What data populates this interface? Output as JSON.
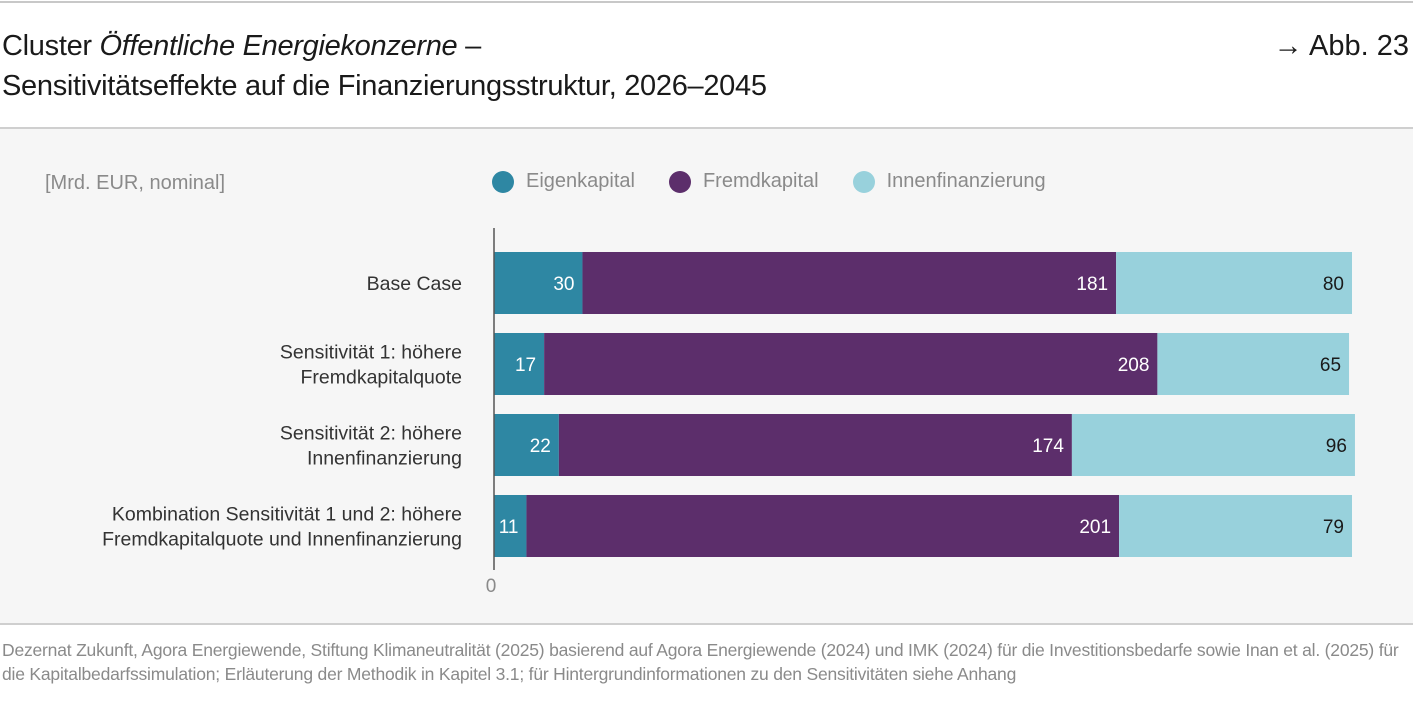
{
  "header": {
    "title_prefix": "Cluster ",
    "title_italic": "Öffentliche Energiekonzerne",
    "title_suffix": " –",
    "title_line2": "Sensitivitätseffekte auf die Finanzierungsstruktur, 2026–2045",
    "figure_ref": "→ Abb. 23"
  },
  "chart_data": {
    "type": "bar",
    "orientation": "horizontal",
    "stacked": true,
    "unit_label": "[Mrd. EUR, nominal]",
    "categories": [
      [
        "Base Case"
      ],
      [
        "Sensitivität 1: höhere",
        "Fremdkapitalquote"
      ],
      [
        "Sensitivität 2: höhere",
        "Innenfinanzierung"
      ],
      [
        "Kombination Sensitivität 1 und 2: höhere",
        "Fremdkapitalquote und Innenfinanzierung"
      ]
    ],
    "series": [
      {
        "name": "Eigenkapital",
        "color": "#2e87a3",
        "label_color": "#ffffff",
        "values": [
          30,
          17,
          22,
          11
        ]
      },
      {
        "name": "Fremdkapital",
        "color": "#5c2e6b",
        "label_color": "#ffffff",
        "values": [
          181,
          208,
          174,
          201
        ]
      },
      {
        "name": "Innenfinanzierung",
        "color": "#98d1dc",
        "label_color": "#1a1a1a",
        "values": [
          80,
          65,
          96,
          79
        ]
      }
    ],
    "xlim": [
      0,
      291
    ],
    "x_tick_labels": [
      "0"
    ],
    "legend_position": "top",
    "grid": false
  },
  "source": "Dezernat Zukunft, Agora Energiewende, Stiftung Klimaneutralität (2025) basierend auf Agora Energiewende (2024) und IMK (2024) für die Investitionsbedarfe sowie Inan et al. (2025) für die Kapitalbedarfssimulation; Erläuterung der Methodik in Kapitel 3.1; für Hintergrundinformationen zu den Sensitivitäten siehe Anhang"
}
